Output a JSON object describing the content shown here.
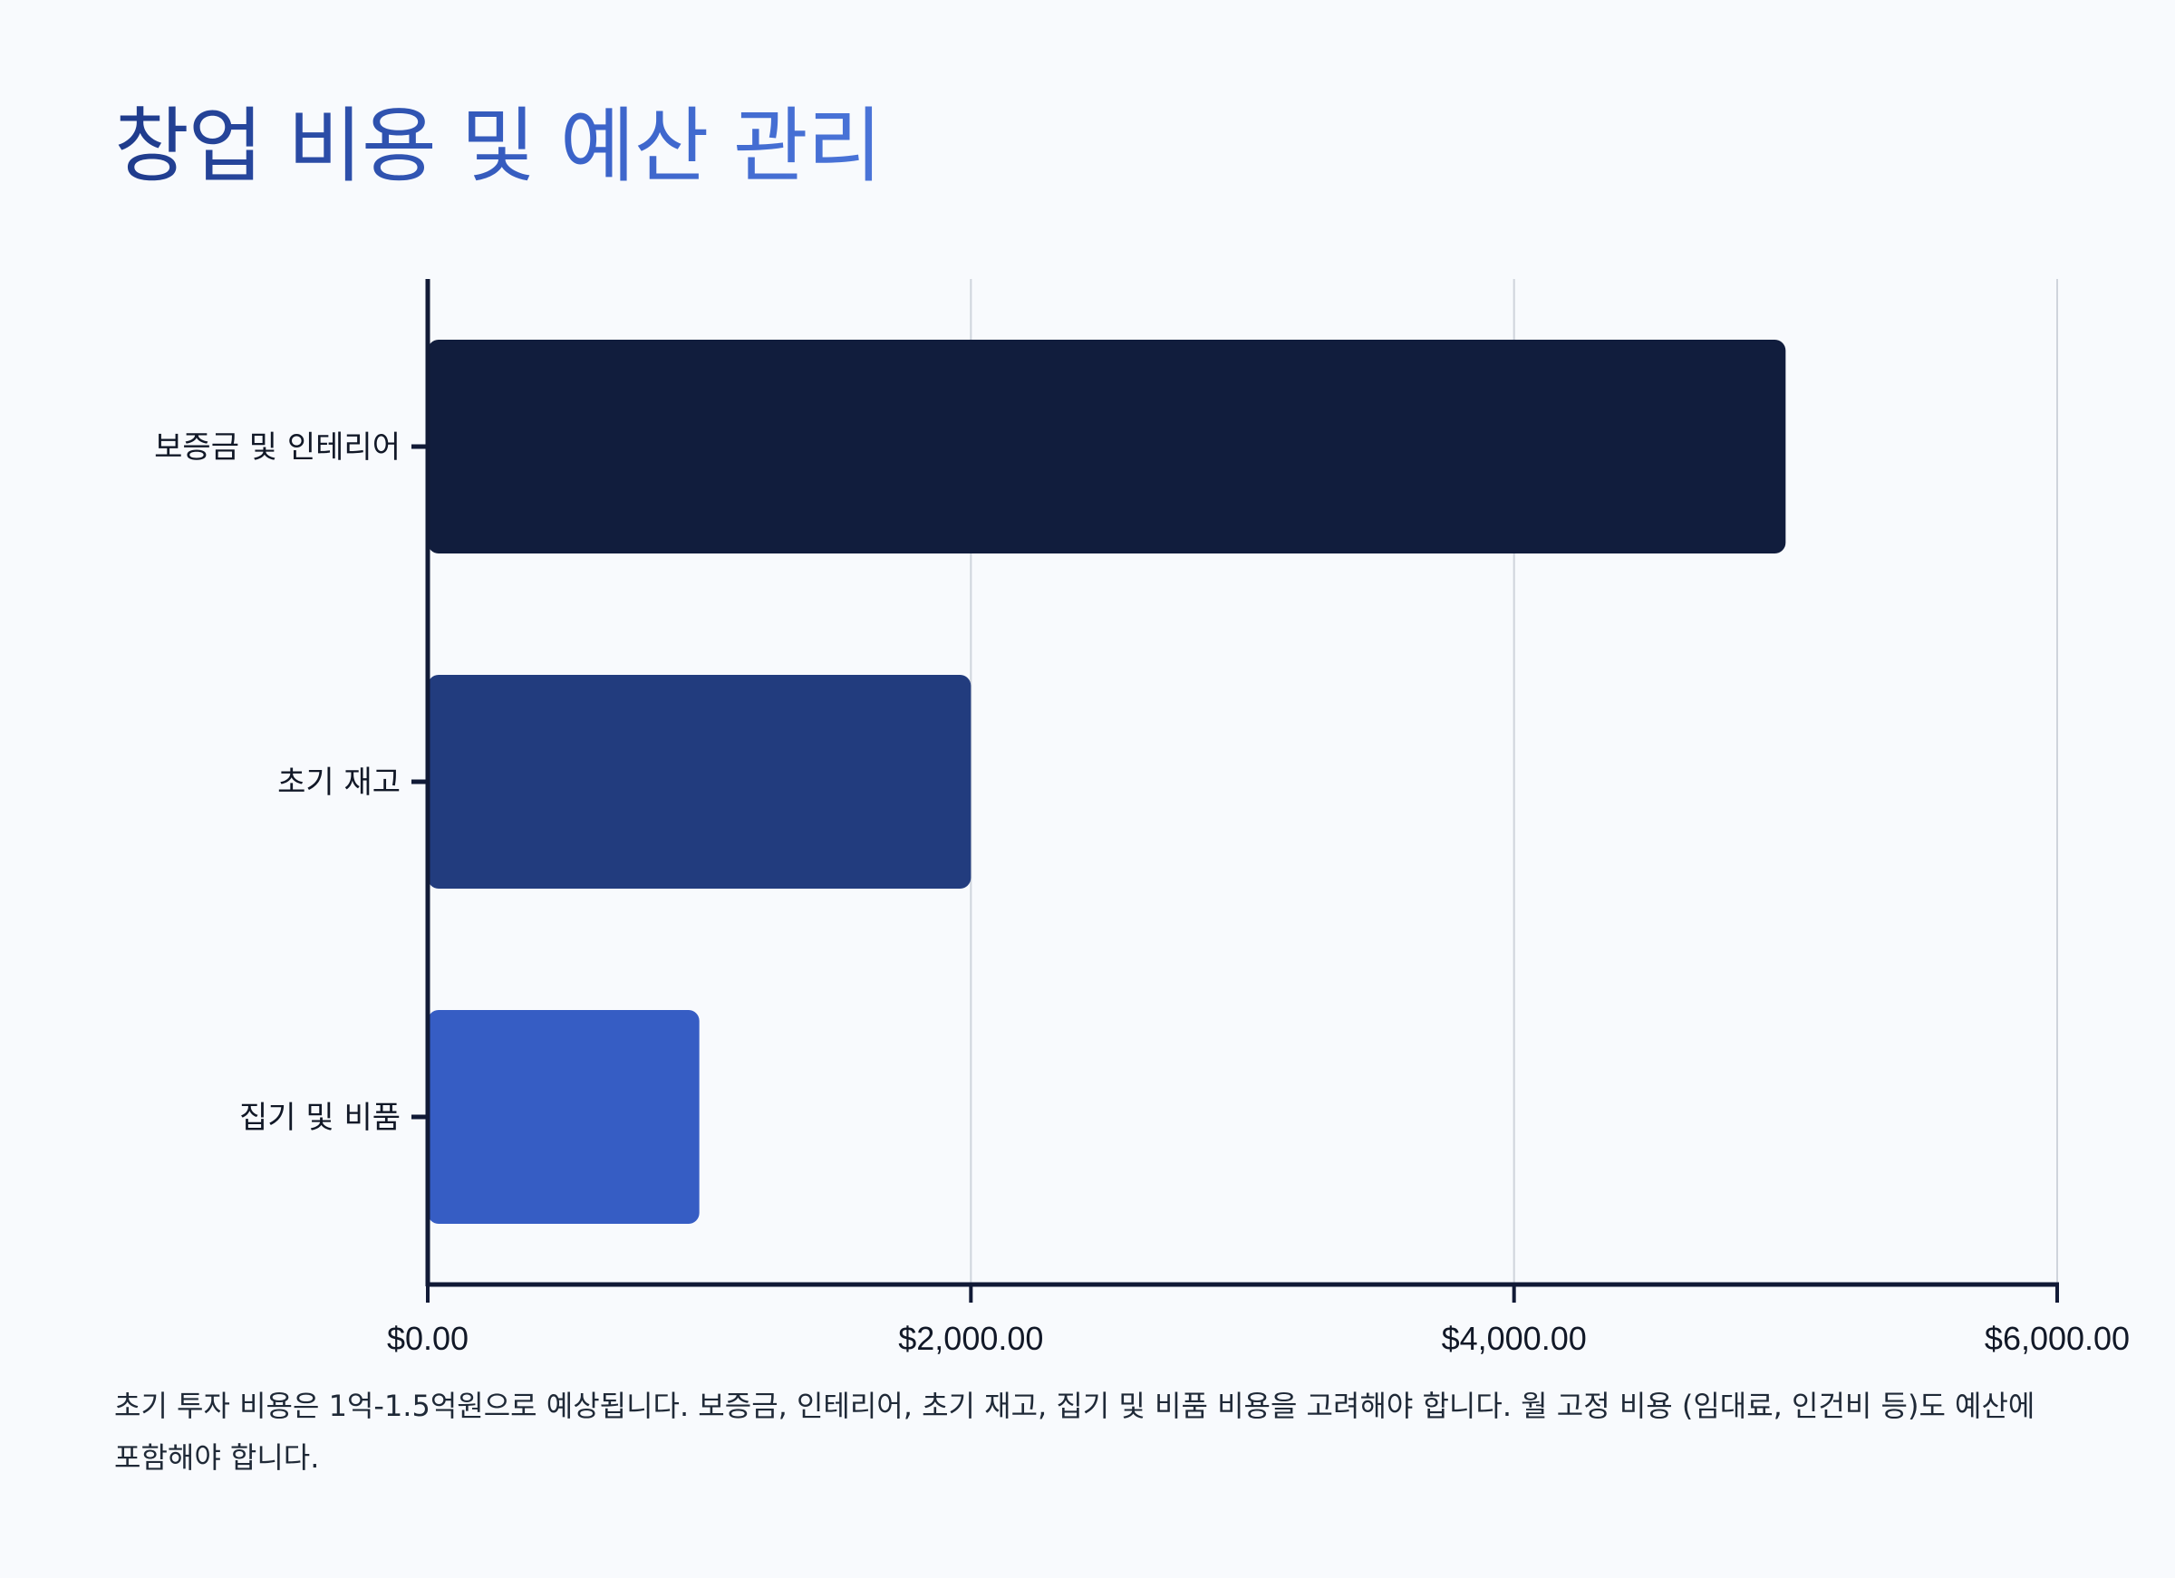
{
  "page": {
    "title": "창업 비용 및 예산 관리",
    "note": "초기 투자 비용은 1억-1.5억원으로 예상됩니다. 보증금, 인테리어, 초기 재고, 집기 및 비품 비용을 고려해야 합니다. 월 고정 비용 (임대료, 인건비 등)도 예산에 포함해야 합니다."
  },
  "colors": {
    "background": "#f8fafd",
    "axis": "#111a36",
    "grid": "#cfd4dc",
    "label": "#111827",
    "bars": [
      "#111d3d",
      "#223c7e",
      "#365dc4"
    ]
  },
  "chart_data": {
    "type": "bar",
    "orientation": "horizontal",
    "title": "창업 비용 및 예산 관리",
    "categories": [
      "보증금 및 인테리어",
      "초기 재고",
      "집기 및 비품"
    ],
    "values": [
      5000,
      2000,
      1000
    ],
    "xlim": [
      0,
      6000
    ],
    "ticks": [
      0,
      2000,
      4000,
      6000
    ],
    "tick_labels": [
      "$0.00",
      "$2,000.00",
      "$4,000.00",
      "$6,000.00"
    ],
    "xlabel": "",
    "ylabel": "",
    "grid": true,
    "legend": "none"
  }
}
